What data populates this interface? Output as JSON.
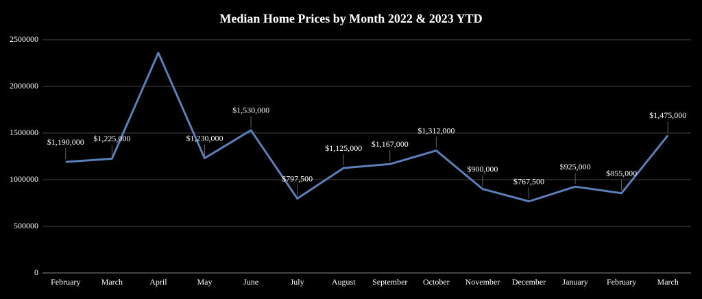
{
  "chart_data": {
    "type": "line",
    "title": "Median Home Prices by Month 2022 & 2023 YTD",
    "categories": [
      "February",
      "March",
      "April",
      "May",
      "June",
      "July",
      "August",
      "September",
      "October",
      "November",
      "December",
      "January",
      "February",
      "March"
    ],
    "series": [
      {
        "color": "#5b7fb8",
        "values": [
          1190000,
          1225000,
          2360000,
          1230000,
          1530000,
          797500,
          1125000,
          1167000,
          1312000,
          900000,
          767500,
          925000,
          855000,
          1475000
        ],
        "value_labels": [
          "$1,190,000",
          "$1,225,000",
          null,
          "$1,230,000",
          "$1,530,000",
          "$797,500",
          "$1,125,000",
          "$1,167,000",
          "$1,312,000",
          "$900,000",
          "$767,500",
          "$925,000",
          "$855,000",
          "$1,475,000"
        ]
      }
    ],
    "ylim": [
      0,
      2500000
    ],
    "yticks": [
      0,
      500000,
      1000000,
      1500000,
      2000000,
      2500000
    ],
    "grid": true
  }
}
